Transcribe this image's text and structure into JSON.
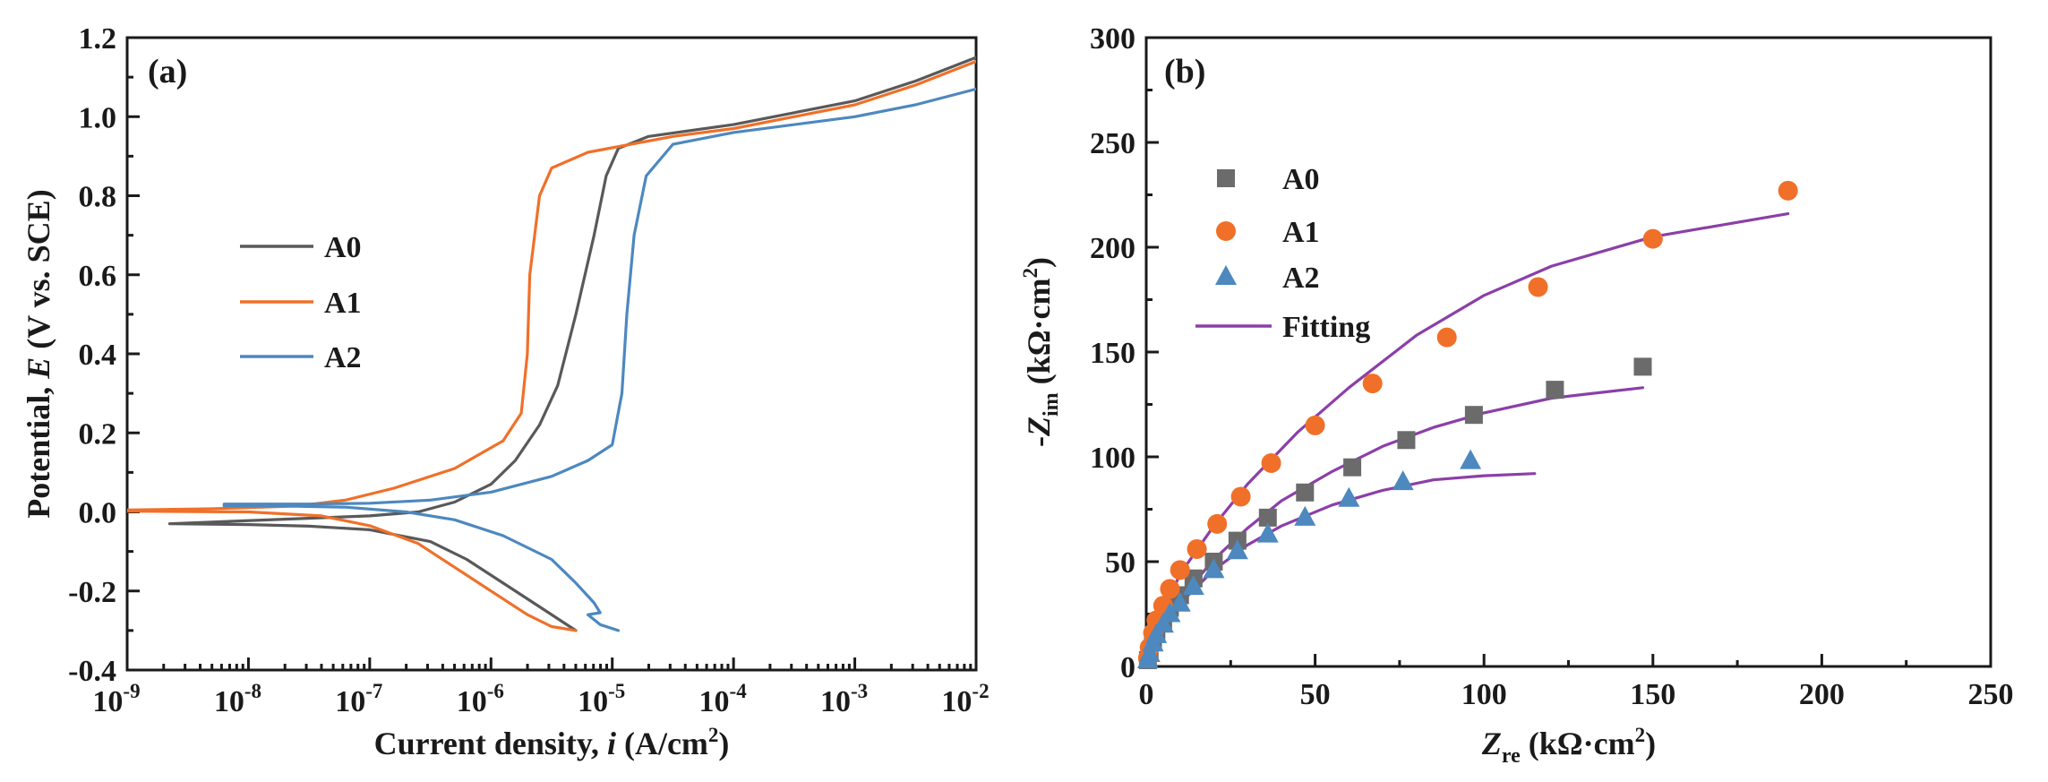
{
  "chart_data": [
    {
      "type": "line",
      "panel_tag": "(a)",
      "xlabel": {
        "prefix": "Current density, ",
        "var": "i",
        "suffix": " (A/cm",
        "sup": "2",
        "end": ")"
      },
      "ylabel": {
        "prefix": "Potential, ",
        "var": "E",
        "suffix": " (V vs. SCE)"
      },
      "x_scale": "log",
      "xlim": [
        -9,
        -2
      ],
      "ylim": [
        -0.4,
        1.2
      ],
      "x_ticks": [
        {
          "base": "10",
          "exp": "-9"
        },
        {
          "base": "10",
          "exp": "-8"
        },
        {
          "base": "10",
          "exp": "-7"
        },
        {
          "base": "10",
          "exp": "-6"
        },
        {
          "base": "10",
          "exp": "-5"
        },
        {
          "base": "10",
          "exp": "-4"
        },
        {
          "base": "10",
          "exp": "-3"
        },
        {
          "base": "10",
          "exp": "-2"
        }
      ],
      "y_ticks": [
        "-0.4",
        "-0.2",
        "0.0",
        "0.2",
        "0.4",
        "0.6",
        "0.8",
        "1.0",
        "1.2"
      ],
      "legend_position": "center-left",
      "series": [
        {
          "name": "A0",
          "color": "#595959",
          "cathodic": [
            [
              -8.65,
              -0.03
            ],
            [
              -8.0,
              -0.032
            ],
            [
              -7.5,
              -0.036
            ],
            [
              -7.0,
              -0.045
            ],
            [
              -6.5,
              -0.075
            ],
            [
              -6.2,
              -0.12
            ],
            [
              -5.9,
              -0.18
            ],
            [
              -5.6,
              -0.24
            ],
            [
              -5.35,
              -0.29
            ],
            [
              -5.3,
              -0.3
            ]
          ],
          "anodic": [
            [
              -7.0,
              -0.01
            ],
            [
              -6.6,
              0.0
            ],
            [
              -6.3,
              0.025
            ],
            [
              -6.0,
              0.07
            ],
            [
              -5.8,
              0.13
            ],
            [
              -5.6,
              0.22
            ],
            [
              -5.45,
              0.32
            ],
            [
              -5.3,
              0.5
            ],
            [
              -5.15,
              0.7
            ],
            [
              -5.05,
              0.85
            ],
            [
              -4.95,
              0.92
            ],
            [
              -4.7,
              0.95
            ],
            [
              -4.0,
              0.98
            ],
            [
              -3.0,
              1.04
            ],
            [
              -2.5,
              1.09
            ],
            [
              -2.0,
              1.15
            ]
          ]
        },
        {
          "name": "A1",
          "color": "#f07029",
          "cathodic": [
            [
              -9.0,
              0.002
            ],
            [
              -8.0,
              0.0
            ],
            [
              -7.4,
              -0.01
            ],
            [
              -7.0,
              -0.035
            ],
            [
              -6.6,
              -0.08
            ],
            [
              -6.3,
              -0.14
            ],
            [
              -6.0,
              -0.2
            ],
            [
              -5.7,
              -0.26
            ],
            [
              -5.5,
              -0.29
            ],
            [
              -5.3,
              -0.3
            ]
          ],
          "anodic": [
            [
              -9.0,
              0.005
            ],
            [
              -8.3,
              0.008
            ],
            [
              -7.6,
              0.015
            ],
            [
              -7.2,
              0.03
            ],
            [
              -6.8,
              0.06
            ],
            [
              -6.3,
              0.11
            ],
            [
              -5.9,
              0.18
            ],
            [
              -5.75,
              0.25
            ],
            [
              -5.7,
              0.4
            ],
            [
              -5.68,
              0.6
            ],
            [
              -5.6,
              0.8
            ],
            [
              -5.5,
              0.87
            ],
            [
              -5.2,
              0.91
            ],
            [
              -4.5,
              0.95
            ],
            [
              -4.0,
              0.97
            ],
            [
              -3.0,
              1.03
            ],
            [
              -2.5,
              1.08
            ],
            [
              -2.0,
              1.14
            ]
          ]
        },
        {
          "name": "A2",
          "color": "#4d88bf",
          "cathodic": [
            [
              -8.2,
              0.015
            ],
            [
              -7.7,
              0.015
            ],
            [
              -7.2,
              0.012
            ],
            [
              -6.7,
              0.0
            ],
            [
              -6.3,
              -0.02
            ],
            [
              -5.9,
              -0.06
            ],
            [
              -5.5,
              -0.12
            ],
            [
              -5.3,
              -0.18
            ],
            [
              -5.15,
              -0.23
            ],
            [
              -5.1,
              -0.255
            ],
            [
              -5.2,
              -0.26
            ],
            [
              -5.1,
              -0.285
            ],
            [
              -4.95,
              -0.3
            ]
          ],
          "anodic": [
            [
              -8.2,
              0.02
            ],
            [
              -7.5,
              0.02
            ],
            [
              -7.0,
              0.022
            ],
            [
              -6.5,
              0.03
            ],
            [
              -6.0,
              0.05
            ],
            [
              -5.5,
              0.09
            ],
            [
              -5.2,
              0.13
            ],
            [
              -5.0,
              0.17
            ],
            [
              -4.92,
              0.3
            ],
            [
              -4.88,
              0.5
            ],
            [
              -4.82,
              0.7
            ],
            [
              -4.72,
              0.85
            ],
            [
              -4.5,
              0.93
            ],
            [
              -4.0,
              0.96
            ],
            [
              -3.0,
              1.0
            ],
            [
              -2.5,
              1.03
            ],
            [
              -2.0,
              1.07
            ]
          ]
        }
      ]
    },
    {
      "type": "scatter",
      "panel_tag": "(b)",
      "xlabel": {
        "var": "Z",
        "sub": "re",
        "suffix": " (kΩ·cm",
        "sup": "2",
        "end": ")"
      },
      "ylabel": {
        "prefix": "-",
        "var": "Z",
        "sub": "im",
        "suffix": " (kΩ·cm",
        "sup": "2",
        "end": ")"
      },
      "xlim": [
        0,
        250
      ],
      "ylim": [
        0,
        300
      ],
      "x_ticks": [
        "0",
        "50",
        "100",
        "150",
        "200",
        "250"
      ],
      "y_ticks": [
        "0",
        "50",
        "100",
        "150",
        "200",
        "250",
        "300"
      ],
      "legend_position": "top-left",
      "series": [
        {
          "name": "A0",
          "marker": "square",
          "color": "#6b6b6b",
          "points": [
            [
              0.5,
              3
            ],
            [
              1,
              7
            ],
            [
              2,
              12
            ],
            [
              3,
              17
            ],
            [
              5,
              22
            ],
            [
              7,
              28
            ],
            [
              10,
              34
            ],
            [
              14,
              42
            ],
            [
              20,
              50
            ],
            [
              27,
              60
            ],
            [
              36,
              71
            ],
            [
              47,
              83
            ],
            [
              61,
              95
            ],
            [
              77,
              108
            ],
            [
              97,
              120
            ],
            [
              121,
              132
            ],
            [
              147,
              143
            ]
          ],
          "fit": [
            [
              0,
              0
            ],
            [
              2,
              9
            ],
            [
              5,
              19
            ],
            [
              10,
              32
            ],
            [
              20,
              51
            ],
            [
              30,
              66
            ],
            [
              40,
              79
            ],
            [
              55,
              93
            ],
            [
              70,
              105
            ],
            [
              85,
              114
            ],
            [
              100,
              121
            ],
            [
              120,
              128
            ],
            [
              147,
              133
            ]
          ]
        },
        {
          "name": "A1",
          "marker": "circle",
          "color": "#f07029",
          "points": [
            [
              0.5,
              4
            ],
            [
              1,
              9
            ],
            [
              2,
              16
            ],
            [
              3,
              22
            ],
            [
              5,
              29
            ],
            [
              7,
              37
            ],
            [
              10,
              46
            ],
            [
              15,
              56
            ],
            [
              21,
              68
            ],
            [
              28,
              81
            ],
            [
              37,
              97
            ],
            [
              50,
              115
            ],
            [
              67,
              135
            ],
            [
              89,
              157
            ],
            [
              116,
              181
            ],
            [
              150,
              204
            ],
            [
              190,
              227
            ]
          ],
          "fit": [
            [
              0,
              0
            ],
            [
              2,
              12
            ],
            [
              5,
              26
            ],
            [
              10,
              44
            ],
            [
              20,
              67
            ],
            [
              30,
              87
            ],
            [
              45,
              112
            ],
            [
              60,
              133
            ],
            [
              80,
              158
            ],
            [
              100,
              177
            ],
            [
              120,
              191
            ],
            [
              150,
              205
            ],
            [
              190,
              216
            ]
          ]
        },
        {
          "name": "A2",
          "marker": "triangle",
          "color": "#4d88bf",
          "points": [
            [
              0.5,
              3
            ],
            [
              1,
              6
            ],
            [
              2,
              11
            ],
            [
              3,
              15
            ],
            [
              5,
              20
            ],
            [
              7,
              25
            ],
            [
              10,
              30
            ],
            [
              14,
              38
            ],
            [
              20,
              46
            ],
            [
              27,
              55
            ],
            [
              36,
              63
            ],
            [
              47,
              71
            ],
            [
              60,
              80
            ],
            [
              76,
              88
            ],
            [
              96,
              98
            ]
          ],
          "fit": [
            [
              0,
              0
            ],
            [
              2,
              8
            ],
            [
              5,
              17
            ],
            [
              10,
              30
            ],
            [
              20,
              46
            ],
            [
              30,
              58
            ],
            [
              40,
              67
            ],
            [
              55,
              77
            ],
            [
              70,
              84
            ],
            [
              85,
              89
            ],
            [
              100,
              91
            ],
            [
              115,
              92
            ]
          ]
        },
        {
          "name": "Fitting",
          "line": true,
          "color": "#8b3fa8"
        }
      ]
    }
  ]
}
